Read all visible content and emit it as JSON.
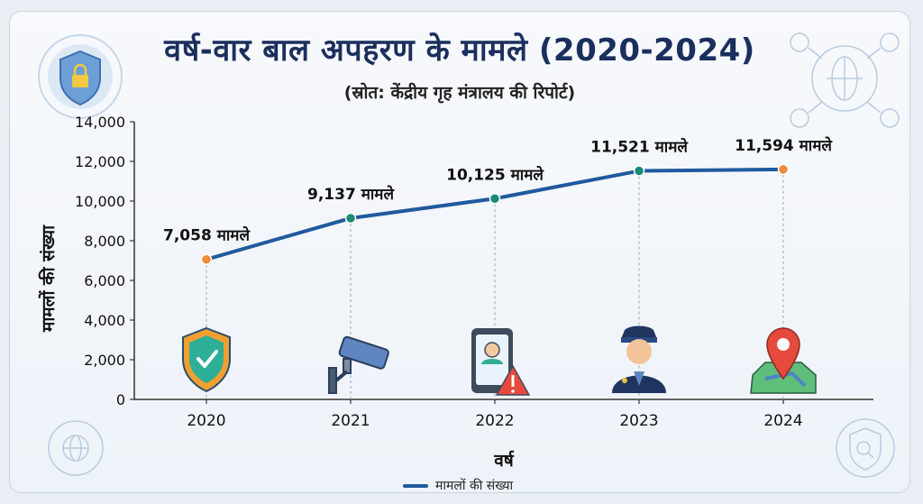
{
  "title": "वर्ष-वार बाल अपहरण के मामले (2020-2024)",
  "subtitle": "(स्रोत: केंद्रीय गृह मंत्रालय की रिपोर्ट)",
  "chart_data": {
    "type": "line",
    "title": "वर्ष-वार बाल अपहरण के मामले (2020-2024)",
    "subtitle": "(स्रोत: केंद्रीय गृह मंत्रालय की रिपोर्ट)",
    "xlabel": "वर्ष",
    "ylabel": "मामलों की संख्या",
    "categories": [
      "2020",
      "2021",
      "2022",
      "2023",
      "2024"
    ],
    "series": [
      {
        "name": "मामलों की संख्या",
        "values": [
          7058,
          9137,
          10125,
          11521,
          11594
        ],
        "color": "#1f5a9e"
      }
    ],
    "data_labels": [
      "7,058 मामले",
      "9,137 मामले",
      "10,125 मामले",
      "11,521 मामले",
      "11,594 मामले"
    ],
    "point_colors": [
      "#f08a3a",
      "#1a8a7a",
      "#1a8a7a",
      "#1a8a7a",
      "#f08a3a"
    ],
    "ylim": [
      0,
      14000
    ],
    "yticks": [
      "0",
      "2,000",
      "4,000",
      "6,000",
      "8,000",
      "10,000",
      "12,000",
      "14,000"
    ],
    "grid": false,
    "legend_position": "bottom",
    "icons": [
      "shield-check-icon",
      "security-camera-icon",
      "missing-child-alert-icon",
      "police-officer-icon",
      "map-pin-icon"
    ]
  }
}
